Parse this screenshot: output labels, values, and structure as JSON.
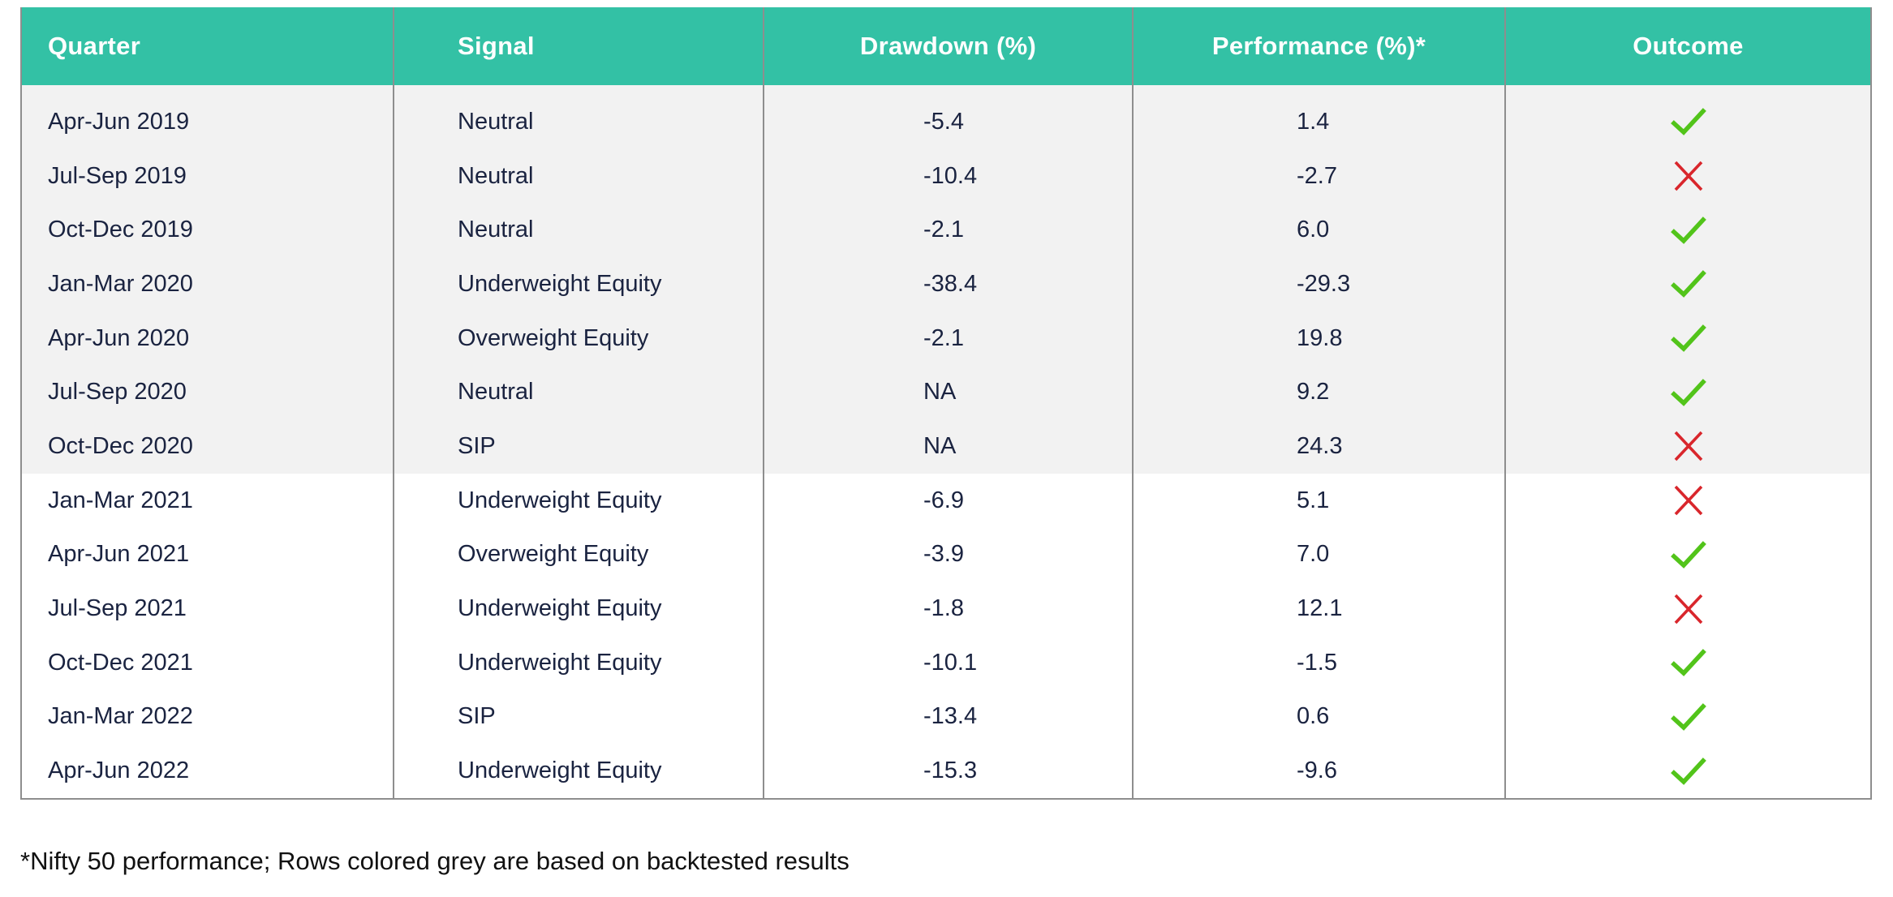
{
  "table": {
    "headers": [
      "Quarter",
      "Signal",
      "Drawdown (%)",
      "Performance (%)*",
      "Outcome"
    ],
    "rows": [
      {
        "quarter": "Apr-Jun 2019",
        "signal": "Neutral",
        "drawdown": "-5.4",
        "performance": "1.4",
        "outcome": "check",
        "backtested": true
      },
      {
        "quarter": "Jul-Sep 2019",
        "signal": "Neutral",
        "drawdown": "-10.4",
        "performance": "-2.7",
        "outcome": "cross",
        "backtested": true
      },
      {
        "quarter": "Oct-Dec 2019",
        "signal": "Neutral",
        "drawdown": "-2.1",
        "performance": "6.0",
        "outcome": "check",
        "backtested": true
      },
      {
        "quarter": "Jan-Mar 2020",
        "signal": "Underweight Equity",
        "drawdown": "-38.4",
        "performance": "-29.3",
        "outcome": "check",
        "backtested": true
      },
      {
        "quarter": "Apr-Jun 2020",
        "signal": "Overweight Equity",
        "drawdown": "-2.1",
        "performance": "19.8",
        "outcome": "check",
        "backtested": true
      },
      {
        "quarter": "Jul-Sep 2020",
        "signal": "Neutral",
        "drawdown": "NA",
        "performance": "9.2",
        "outcome": "check",
        "backtested": true
      },
      {
        "quarter": "Oct-Dec 2020",
        "signal": "SIP",
        "drawdown": "NA",
        "performance": "24.3",
        "outcome": "cross",
        "backtested": true
      },
      {
        "quarter": "Jan-Mar 2021",
        "signal": "Underweight Equity",
        "drawdown": "-6.9",
        "performance": "5.1",
        "outcome": "cross",
        "backtested": false
      },
      {
        "quarter": "Apr-Jun 2021",
        "signal": "Overweight Equity",
        "drawdown": "-3.9",
        "performance": "7.0",
        "outcome": "check",
        "backtested": false
      },
      {
        "quarter": "Jul-Sep 2021",
        "signal": "Underweight Equity",
        "drawdown": "-1.8",
        "performance": "12.1",
        "outcome": "cross",
        "backtested": false
      },
      {
        "quarter": "Oct-Dec 2021",
        "signal": "Underweight Equity",
        "drawdown": "-10.1",
        "performance": "-1.5",
        "outcome": "check",
        "backtested": false
      },
      {
        "quarter": "Jan-Mar 2022",
        "signal": "SIP",
        "drawdown": "-13.4",
        "performance": "0.6",
        "outcome": "check",
        "backtested": false
      },
      {
        "quarter": "Apr-Jun 2022",
        "signal": "Underweight Equity",
        "drawdown": "-15.3",
        "performance": "-9.6",
        "outcome": "check",
        "backtested": false
      }
    ]
  },
  "colors": {
    "header_bg": "#33c1a5",
    "header_text": "#ffffff",
    "grey_row": "#f2f2f2",
    "check": "#52c41a",
    "cross": "#d9262c"
  },
  "icons": {
    "check": "check-icon",
    "cross": "cross-icon"
  },
  "footnote": "*Nifty 50 performance; Rows colored grey are based on backtested results"
}
